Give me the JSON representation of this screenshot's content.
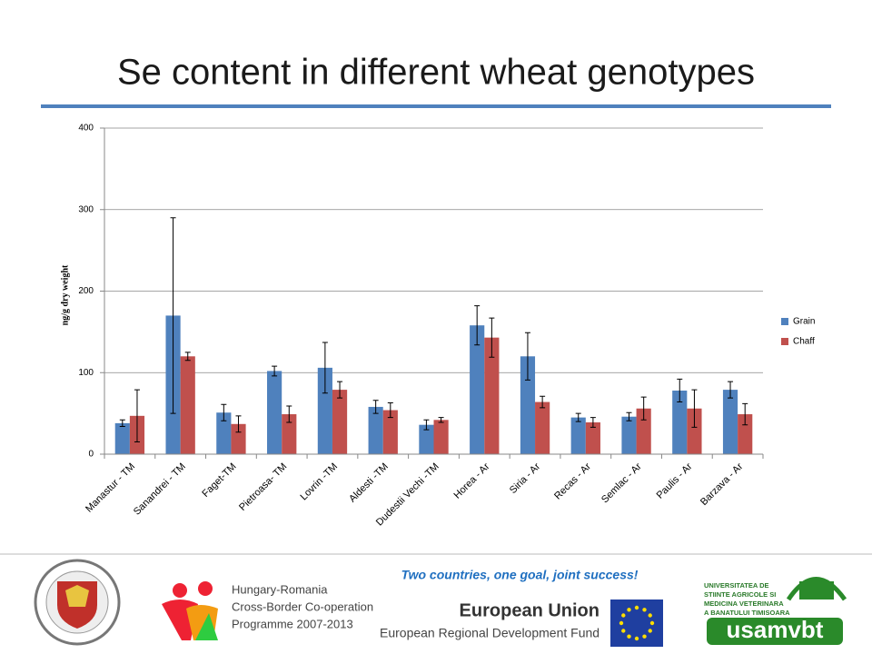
{
  "chart_data": {
    "type": "bar",
    "title": "Se content in different wheat genotypes",
    "y_label": "ng/g dry weight",
    "categories": [
      "Manastur - TM",
      "Sanandrei - TM",
      "Faget-TM",
      "Pietroasa- TM",
      "Lovrin -TM",
      "Aldesti -TM",
      "Dudestii Vechi -TM",
      "Horea - Ar",
      "Siria - Ar",
      "Recas - Ar",
      "Semlac - Ar",
      "Paulis - Ar",
      "Barzava - Ar"
    ],
    "series": [
      {
        "name": "Grain",
        "color": "#4f81bd",
        "values": [
          38,
          170,
          51,
          102,
          106,
          58,
          36,
          158,
          120,
          45,
          46,
          78,
          79
        ],
        "errors": [
          4,
          120,
          10,
          6,
          31,
          8,
          6,
          24,
          29,
          5,
          5,
          14,
          10
        ]
      },
      {
        "name": "Chaff",
        "color": "#c0504d",
        "values": [
          47,
          120,
          37,
          49,
          79,
          54,
          42,
          143,
          64,
          39,
          56,
          56,
          49
        ],
        "errors": [
          32,
          5,
          10,
          10,
          10,
          9,
          3,
          24,
          7,
          6,
          14,
          23,
          13
        ]
      }
    ],
    "ylim": [
      0,
      400
    ],
    "yticks": [
      0,
      100,
      200,
      300,
      400
    ],
    "grid": true,
    "legend": "right"
  },
  "footer": {
    "slogan": "Two countries, one goal, joint success!",
    "programme": [
      "Hungary-Romania",
      "Cross-Border Co-operation",
      "Programme 2007-2013"
    ],
    "eu": "European Union",
    "fund": "European Regional Development Fund",
    "university": [
      "UNIVERSITATEA DE",
      "STIINTE AGRICOLE SI",
      "MEDICINA VETERINARA",
      "A BANATULUI TIMISOARA"
    ],
    "brand": "usamvbt"
  }
}
